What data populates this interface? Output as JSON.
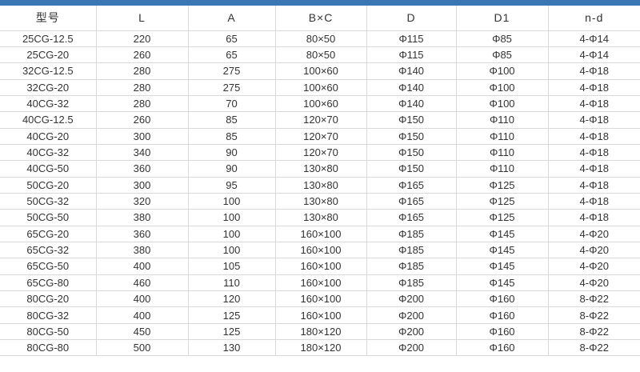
{
  "colors": {
    "accent": "#3a75b4",
    "border": "#d9d9d9",
    "text": "#333333"
  },
  "table": {
    "columns": [
      "型号",
      "L",
      "A",
      "B×C",
      "D",
      "D1",
      "n-d"
    ],
    "rows": [
      [
        "25CG-12.5",
        "220",
        "65",
        "80×50",
        "Φ115",
        "Φ85",
        "4-Φ14"
      ],
      [
        "25CG-20",
        "260",
        "65",
        "80×50",
        "Φ115",
        "Φ85",
        "4-Φ14"
      ],
      [
        "32CG-12.5",
        "280",
        "275",
        "100×60",
        "Φ140",
        "Φ100",
        "4-Φ18"
      ],
      [
        "32CG-20",
        "280",
        "275",
        "100×60",
        "Φ140",
        "Φ100",
        "4-Φ18"
      ],
      [
        "40CG-32",
        "280",
        "70",
        "100×60",
        "Φ140",
        "Φ100",
        "4-Φ18"
      ],
      [
        "40CG-12.5",
        "260",
        "85",
        "120×70",
        "Φ150",
        "Φ110",
        "4-Φ18"
      ],
      [
        "40CG-20",
        "300",
        "85",
        "120×70",
        "Φ150",
        "Φ110",
        "4-Φ18"
      ],
      [
        "40CG-32",
        "340",
        "90",
        "120×70",
        "Φ150",
        "Φ110",
        "4-Φ18"
      ],
      [
        "40CG-50",
        "360",
        "90",
        "130×80",
        "Φ150",
        "Φ110",
        "4-Φ18"
      ],
      [
        "50CG-20",
        "300",
        "95",
        "130×80",
        "Φ165",
        "Φ125",
        "4-Φ18"
      ],
      [
        "50CG-32",
        "320",
        "100",
        "130×80",
        "Φ165",
        "Φ125",
        "4-Φ18"
      ],
      [
        "50CG-50",
        "380",
        "100",
        "130×80",
        "Φ165",
        "Φ125",
        "4-Φ18"
      ],
      [
        "65CG-20",
        "360",
        "100",
        "160×100",
        "Φ185",
        "Φ145",
        "4-Φ20"
      ],
      [
        "65CG-32",
        "380",
        "100",
        "160×100",
        "Φ185",
        "Φ145",
        "4-Φ20"
      ],
      [
        "65CG-50",
        "400",
        "105",
        "160×100",
        "Φ185",
        "Φ145",
        "4-Φ20"
      ],
      [
        "65CG-80",
        "460",
        "110",
        "160×100",
        "Φ185",
        "Φ145",
        "4-Φ20"
      ],
      [
        "80CG-20",
        "400",
        "120",
        "160×100",
        "Φ200",
        "Φ160",
        "8-Φ22"
      ],
      [
        "80CG-32",
        "400",
        "125",
        "160×100",
        "Φ200",
        "Φ160",
        "8-Φ22"
      ],
      [
        "80CG-50",
        "450",
        "125",
        "180×120",
        "Φ200",
        "Φ160",
        "8-Φ22"
      ],
      [
        "80CG-80",
        "500",
        "130",
        "180×120",
        "Φ200",
        "Φ160",
        "8-Φ22"
      ]
    ]
  }
}
